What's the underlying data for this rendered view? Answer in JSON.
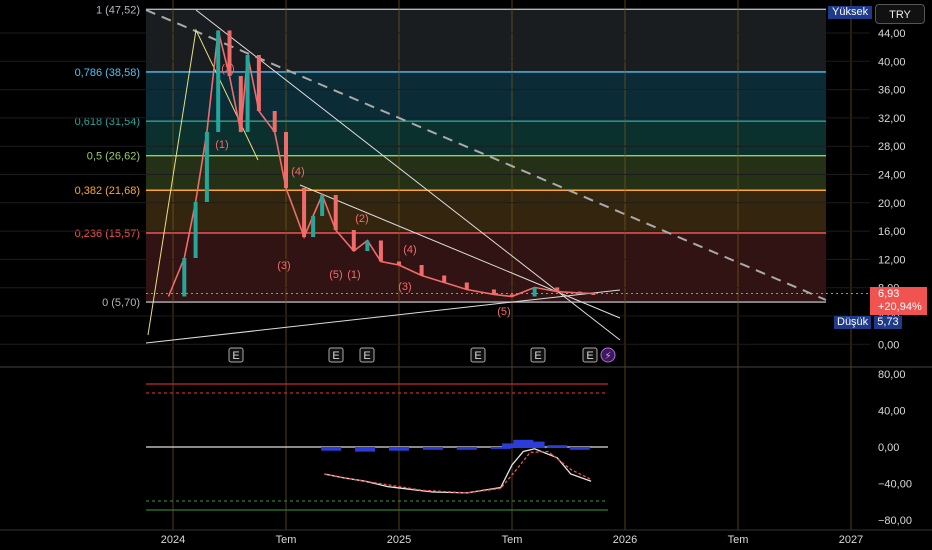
{
  "toolbar": {
    "currency": "TRY"
  },
  "tags": {
    "high": "Yüksek",
    "low_label": "Düşük",
    "low_value": "5,73"
  },
  "price_box": {
    "price": "6,93",
    "change": "+20,94%"
  },
  "colors": {
    "up": "#26a69a",
    "down": "#f26b6b",
    "accent": "#2962ff"
  },
  "chart_data": [
    {
      "type": "candlestick",
      "title": "",
      "xlabel": "",
      "ylabel": "",
      "x_ticks": [
        "2024",
        "Tem",
        "2025",
        "Tem",
        "2026",
        "Tem",
        "2027"
      ],
      "y_ticks": [
        "44,00",
        "40,00",
        "36,00",
        "32,00",
        "28,00",
        "24,00",
        "20,00",
        "16,00",
        "12,00",
        "8,00",
        "4,00",
        "0,00"
      ],
      "ylim": [
        -2,
        48
      ],
      "grid": true,
      "fib_levels": [
        {
          "label": "1 (47,52)",
          "value": 47.52,
          "color": "#b2b5be"
        },
        {
          "label": "0,786 (38,58)",
          "value": 38.58,
          "color": "#4fc3f7"
        },
        {
          "label": "0,618 (31,54)",
          "value": 31.54,
          "color": "#26a69a"
        },
        {
          "label": "0,5 (26,62)",
          "value": 26.62,
          "color": "#9ccc65"
        },
        {
          "label": "0,382 (21,68)",
          "value": 21.68,
          "color": "#ffa726"
        },
        {
          "label": "0,236 (15,57)",
          "value": 15.57,
          "color": "#ef5350"
        },
        {
          "label": "0 (5,70)",
          "value": 5.7,
          "color": "#b2b5be"
        }
      ],
      "wave_labels": [
        "(2)",
        "(1)",
        "(4)",
        "(3)",
        "(2)",
        "(5)",
        "(1)",
        "(4)",
        "(3)",
        "(5)"
      ],
      "event_markers": [
        "E",
        "E",
        "E",
        "E",
        "E",
        "E"
      ],
      "price_path": [
        [
          2023.98,
          6.5
        ],
        [
          2024.05,
          12
        ],
        [
          2024.1,
          20
        ],
        [
          2024.15,
          30
        ],
        [
          2024.2,
          44.5
        ],
        [
          2024.25,
          38
        ],
        [
          2024.3,
          30
        ],
        [
          2024.33,
          41
        ],
        [
          2024.38,
          33
        ],
        [
          2024.45,
          30
        ],
        [
          2024.5,
          22
        ],
        [
          2024.58,
          15
        ],
        [
          2024.62,
          18
        ],
        [
          2024.66,
          21
        ],
        [
          2024.72,
          16
        ],
        [
          2024.8,
          13
        ],
        [
          2024.86,
          14.5
        ],
        [
          2024.92,
          11.5
        ],
        [
          2025.0,
          11
        ],
        [
          2025.1,
          9.5
        ],
        [
          2025.2,
          8.5
        ],
        [
          2025.3,
          7.5
        ],
        [
          2025.42,
          6.8
        ],
        [
          2025.5,
          6.5
        ],
        [
          2025.6,
          7.8
        ],
        [
          2025.7,
          7.2
        ],
        [
          2025.8,
          7.0
        ],
        [
          2025.86,
          6.93
        ]
      ]
    },
    {
      "type": "line",
      "title": "",
      "y_ticks": [
        "80,00",
        "40,00",
        "0,00",
        "−40,00",
        "−80,00"
      ],
      "ylim": [
        -85,
        85
      ],
      "series": [
        {
          "values": [
            [
              2024.67,
              -30
            ],
            [
              2024.75,
              -34
            ],
            [
              2024.85,
              -38
            ],
            [
              2024.95,
              -44
            ],
            [
              2025.05,
              -47
            ],
            [
              2025.15,
              -50
            ],
            [
              2025.3,
              -51
            ],
            [
              2025.45,
              -45
            ],
            [
              2025.5,
              -20
            ],
            [
              2025.55,
              -5
            ],
            [
              2025.6,
              -2
            ],
            [
              2025.7,
              -12
            ],
            [
              2025.76,
              -30
            ],
            [
              2025.85,
              -38
            ]
          ]
        },
        {
          "values": [
            [
              2024.67,
              -30
            ],
            [
              2024.8,
              -36
            ],
            [
              2024.95,
              -42
            ],
            [
              2025.1,
              -48
            ],
            [
              2025.3,
              -51
            ],
            [
              2025.45,
              -46
            ],
            [
              2025.52,
              -25
            ],
            [
              2025.58,
              -6
            ],
            [
              2025.66,
              -5
            ],
            [
              2025.76,
              -25
            ],
            [
              2025.85,
              -36
            ]
          ]
        }
      ],
      "histogram": [
        [
          2024.7,
          -3
        ],
        [
          2024.85,
          -4
        ],
        [
          2025.0,
          -3
        ],
        [
          2025.15,
          -2
        ],
        [
          2025.3,
          -2
        ],
        [
          2025.45,
          -1
        ],
        [
          2025.5,
          4
        ],
        [
          2025.55,
          8
        ],
        [
          2025.6,
          6
        ],
        [
          2025.7,
          2
        ],
        [
          2025.8,
          -2
        ]
      ],
      "levels": [
        70,
        60,
        0,
        -60,
        -70
      ]
    }
  ]
}
